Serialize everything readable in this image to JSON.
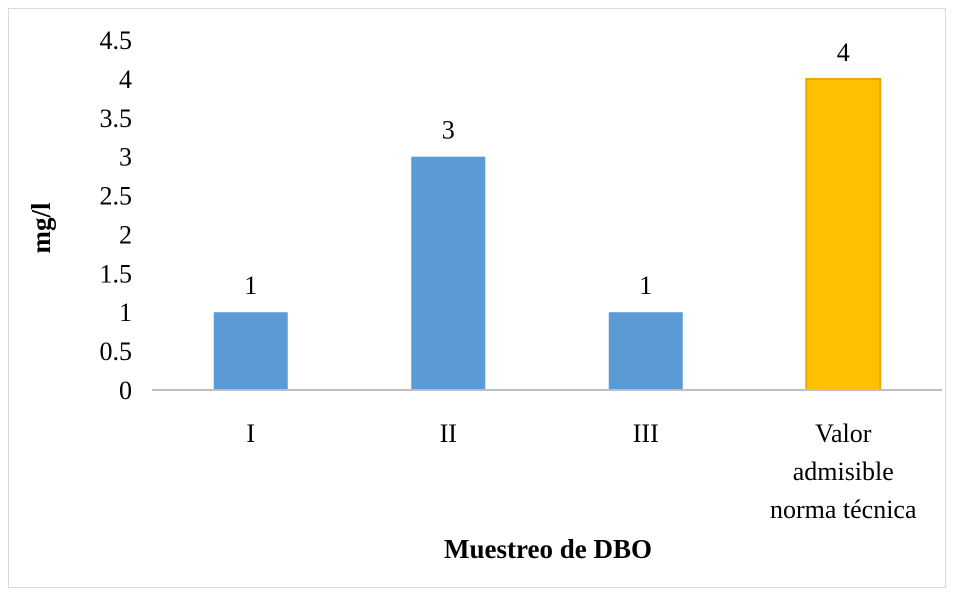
{
  "chart_data": {
    "type": "bar",
    "categories": [
      "I",
      "II",
      "III",
      "Valor admisible norma técnica"
    ],
    "category_lines": [
      [
        "I"
      ],
      [
        "II"
      ],
      [
        "III"
      ],
      [
        "Valor",
        "admisible",
        "norma técnica"
      ]
    ],
    "values": [
      1,
      3,
      1,
      4
    ],
    "data_labels": [
      "1",
      "3",
      "1",
      "4"
    ],
    "bar_colors": [
      "#5b9bd5",
      "#5b9bd5",
      "#5b9bd5",
      "#ffc000"
    ],
    "xlabel": "Muestreo de DBO",
    "ylabel": "mg/l",
    "ylim": [
      0,
      4.5
    ],
    "yticks": [
      0,
      0.5,
      1,
      1.5,
      2,
      2.5,
      3,
      3.5,
      4,
      4.5
    ],
    "ytick_labels": [
      "0",
      "0.5",
      "1",
      "1.5",
      "2",
      "2.5",
      "3",
      "3.5",
      "4",
      "4.5"
    ],
    "grid": false,
    "legend": "none"
  }
}
